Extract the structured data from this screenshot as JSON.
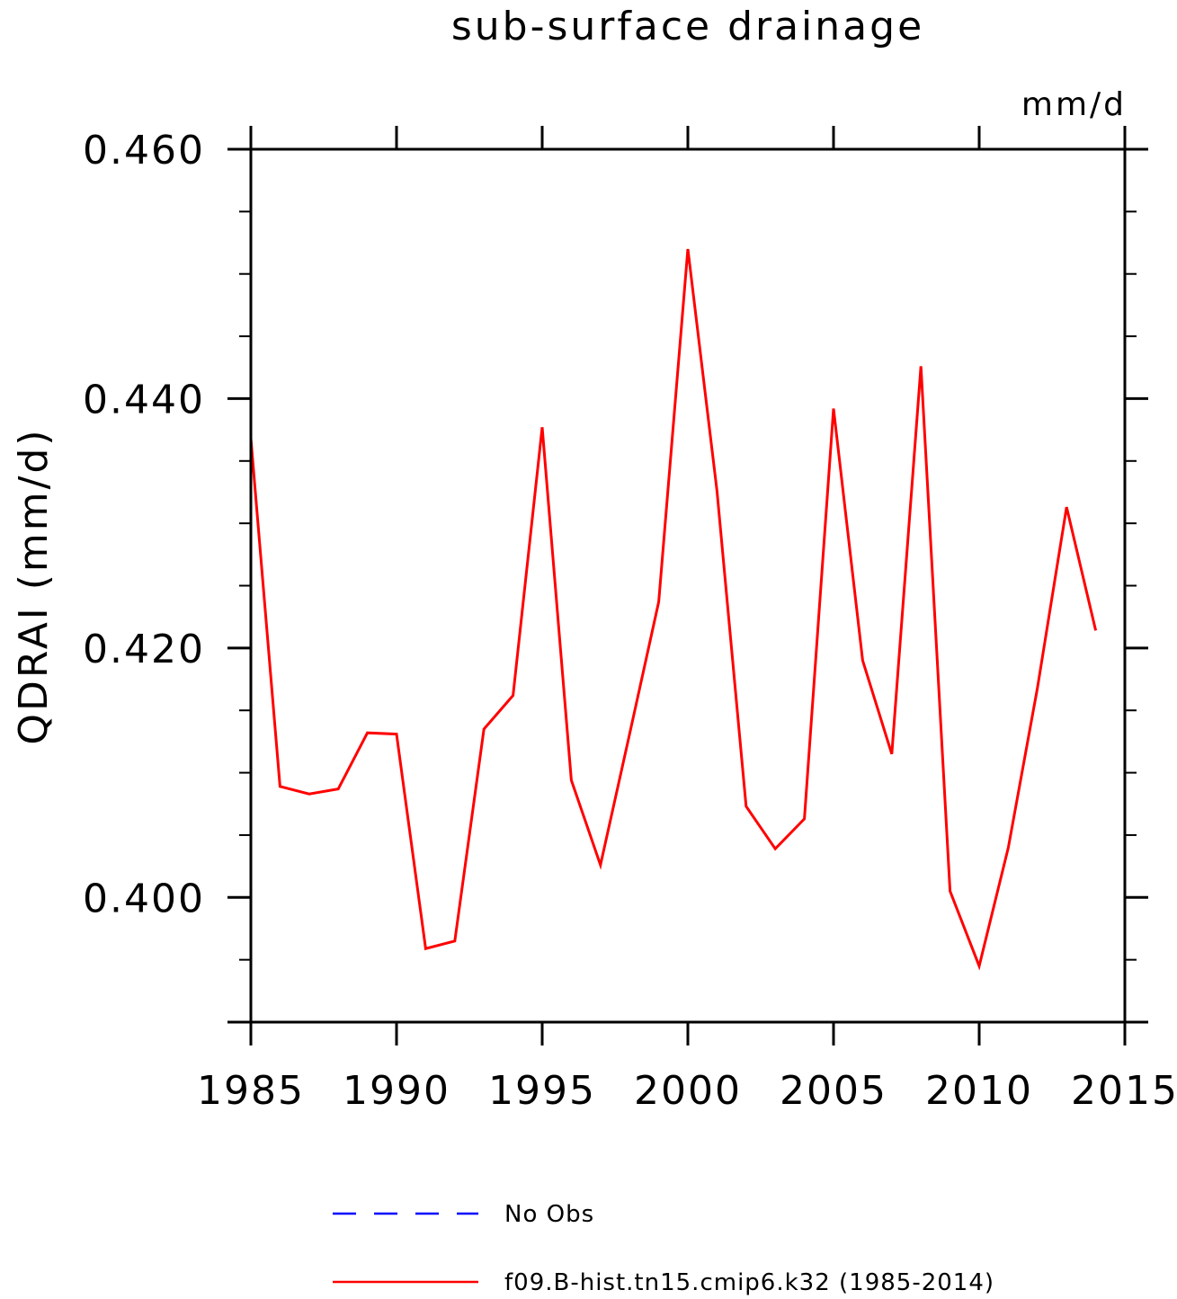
{
  "chart_data": {
    "type": "line",
    "title": "sub-surface drainage",
    "units_label": "mm/d",
    "ylabel": "QDRAI  (mm/d)",
    "xlabel": "",
    "xlim": [
      1985,
      2015
    ],
    "ylim": [
      0.39,
      0.46
    ],
    "x_ticks": [
      1985,
      1990,
      1995,
      2000,
      2005,
      2010,
      2015
    ],
    "x_tick_labels": [
      "1985",
      "1990",
      "1995",
      "2000",
      "2005",
      "2010",
      "2015"
    ],
    "y_ticks": [
      0.4,
      0.42,
      0.44,
      0.46
    ],
    "y_tick_labels": [
      "0.400",
      "0.420",
      "0.440",
      "0.460"
    ],
    "y_minor_ticks": [
      0.395,
      0.405,
      0.41,
      0.415,
      0.425,
      0.43,
      0.435,
      0.445,
      0.45,
      0.455
    ],
    "grid": false,
    "legend_position": "bottom",
    "series": [
      {
        "name": "No Obs",
        "color": "#0000ff",
        "style": "dashed",
        "x": [],
        "values": []
      },
      {
        "name": "f09.B-hist.tn15.cmip6.k32 (1985-2014)",
        "color": "#ff0000",
        "style": "solid",
        "x": [
          1985,
          1986,
          1987,
          1988,
          1989,
          1990,
          1991,
          1992,
          1993,
          1994,
          1995,
          1996,
          1997,
          1998,
          1999,
          2000,
          2001,
          2002,
          2003,
          2004,
          2005,
          2006,
          2007,
          2008,
          2009,
          2010,
          2011,
          2012,
          2013,
          2014
        ],
        "values": [
          0.4368,
          0.4089,
          0.4083,
          0.4087,
          0.4132,
          0.4131,
          0.3959,
          0.3965,
          0.4135,
          0.4162,
          0.4377,
          0.4094,
          0.4026,
          0.4131,
          0.4237,
          0.452,
          0.4326,
          0.4073,
          0.4039,
          0.4063,
          0.4392,
          0.419,
          0.4115,
          0.4426,
          0.4005,
          0.3945,
          0.404,
          0.4168,
          0.4313,
          0.4214
        ]
      }
    ]
  }
}
